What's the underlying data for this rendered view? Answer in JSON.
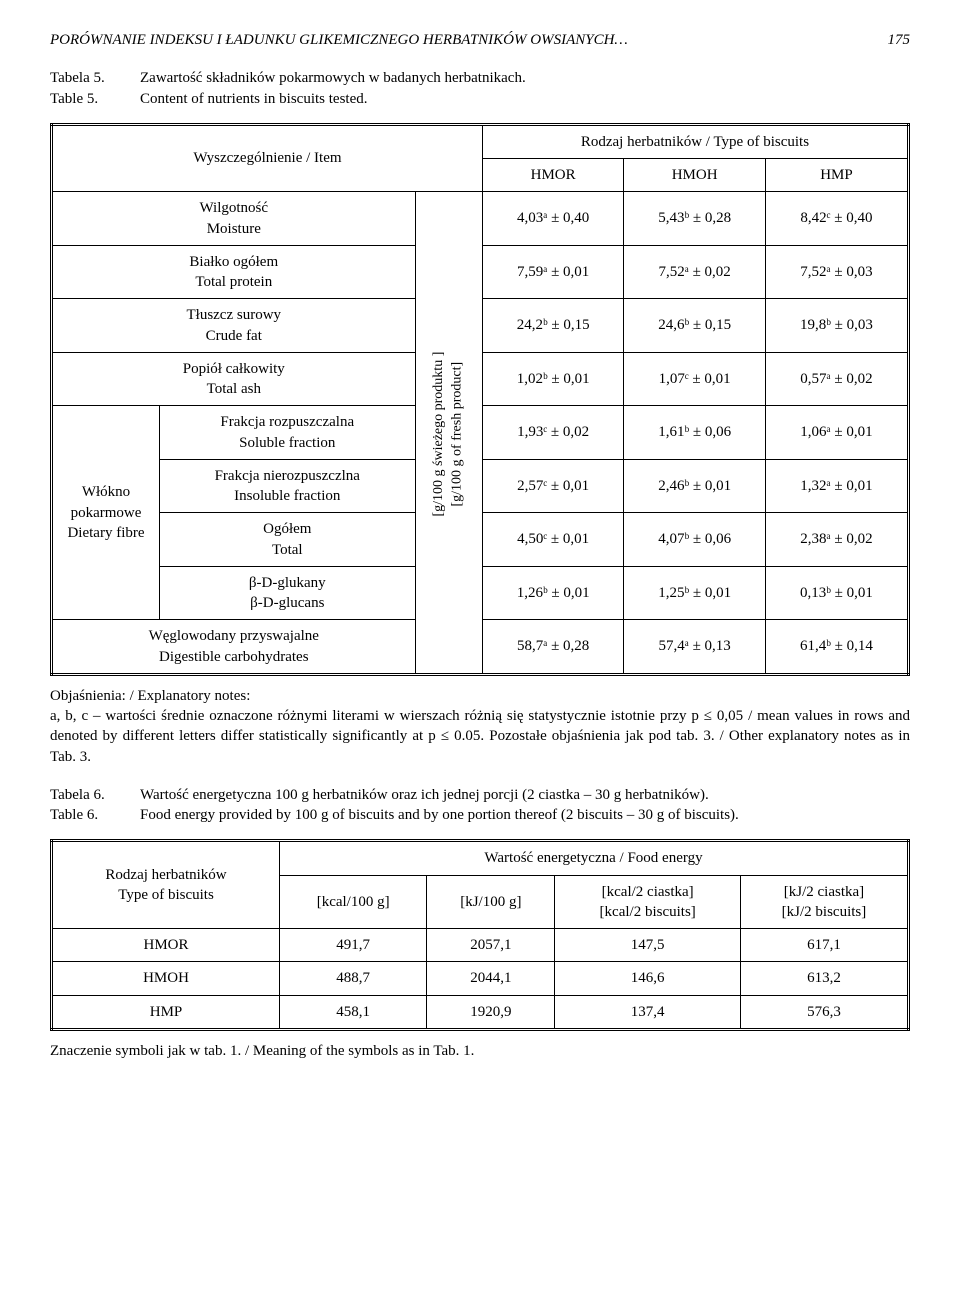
{
  "running_head": {
    "title": "PORÓWNANIE INDEKSU I ŁADUNKU GLIKEMICZNEGO HERBATNIKÓW OWSIANYCH…",
    "page": "175"
  },
  "table5": {
    "caption_pl_label": "Tabela 5.",
    "caption_pl_text": "Zawartość składników pokarmowych w badanych herbatnikach.",
    "caption_en_label": "Table 5.",
    "caption_en_text": "Content of nutrients in biscuits tested.",
    "head_item": "Wyszczególnienie / Item",
    "head_type": "Rodzaj herbatników / Type of biscuits",
    "cols": [
      "HMOR",
      "HMOH",
      "HMP"
    ],
    "unit_label_pl": "[g/100 g świeżego produktu ]",
    "unit_label_en": "[g/100 g of fresh product]",
    "fibre_group_label": "Włókno\npokarmowe\nDietary fibre",
    "rows": [
      {
        "label": "Wilgotność\nMoisture",
        "vals": [
          "4,03ᵃ ± 0,40",
          "5,43ᵇ ± 0,28",
          "8,42ᶜ ± 0,40"
        ]
      },
      {
        "label": "Białko ogółem\nTotal protein",
        "vals": [
          "7,59ᵃ ± 0,01",
          "7,52ᵃ ± 0,02",
          "7,52ᵃ ± 0,03"
        ]
      },
      {
        "label": "Tłuszcz surowy\nCrude fat",
        "vals": [
          "24,2ᵇ ± 0,15",
          "24,6ᵇ ± 0,15",
          "19,8ᵇ ± 0,03"
        ]
      },
      {
        "label": "Popiół całkowity\nTotal ash",
        "vals": [
          "1,02ᵇ ± 0,01",
          "1,07ᶜ ± 0,01",
          "0,57ᵃ ± 0,02"
        ]
      },
      {
        "label": "Frakcja rozpuszczalna\nSoluble fraction",
        "vals": [
          "1,93ᶜ ± 0,02",
          "1,61ᵇ ± 0,06",
          "1,06ᵃ ± 0,01"
        ]
      },
      {
        "label": "Frakcja nierozpuszczlna\nInsoluble fraction",
        "vals": [
          "2,57ᶜ ± 0,01",
          "2,46ᵇ ± 0,01",
          "1,32ᵃ ± 0,01"
        ]
      },
      {
        "label": "Ogółem\nTotal",
        "vals": [
          "4,50ᶜ ± 0,01",
          "4,07ᵇ ± 0,06",
          "2,38ᵃ ± 0,02"
        ]
      },
      {
        "label": "β-D-glukany\nβ-D-glucans",
        "vals": [
          "1,26ᵇ ± 0,01",
          "1,25ᵇ ± 0,01",
          "0,13ᵇ ± 0,01"
        ]
      },
      {
        "label": "Węglowodany przyswajalne\nDigestible carbohydrates",
        "vals": [
          "58,7ᵃ ± 0,28",
          "57,4ᵃ ± 0,13",
          "61,4ᵇ ± 0,14"
        ]
      }
    ],
    "notes": "Objaśnienia: / Explanatory notes:\na, b, c – wartości średnie oznaczone różnymi literami w wierszach różnią się statystycznie istotnie przy p ≤ 0,05 / mean values in rows and denoted by different letters differ statistically significantly at p ≤ 0.05. Pozostałe objaśnienia jak pod tab. 3. / Other explanatory notes as in Tab. 3."
  },
  "table6": {
    "caption_pl_label": "Tabela 6.",
    "caption_pl_text": "Wartość energetyczna 100 g herbatników oraz ich jednej porcji (2 ciastka – 30 g herbatników).",
    "caption_en_label": "Table 6.",
    "caption_en_text": "Food energy provided by 100 g of biscuits and by one portion thereof (2 biscuits – 30 g of biscuits).",
    "head_type": "Rodzaj herbatników\nType of biscuits",
    "head_energy": "Wartość energetyczna / Food energy",
    "cols": [
      "[kcal/100 g]",
      "[kJ/100 g]",
      "[kcal/2 ciastka]\n[kcal/2 biscuits]",
      "[kJ/2 ciastka]\n[kJ/2 biscuits]"
    ],
    "rows": [
      {
        "label": "HMOR",
        "vals": [
          "491,7",
          "2057,1",
          "147,5",
          "617,1"
        ]
      },
      {
        "label": "HMOH",
        "vals": [
          "488,7",
          "2044,1",
          "146,6",
          "613,2"
        ]
      },
      {
        "label": "HMP",
        "vals": [
          "458,1",
          "1920,9",
          "137,4",
          "576,3"
        ]
      }
    ],
    "footer": "Znaczenie symboli jak w tab. 1. / Meaning of the symbols as in Tab. 1."
  }
}
